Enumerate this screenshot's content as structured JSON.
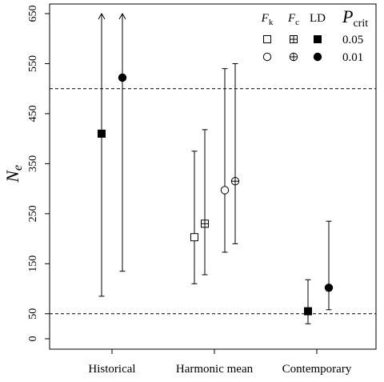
{
  "chart_data": {
    "type": "scatter",
    "subtype": "point-with-interval",
    "title": "",
    "xlabel": "",
    "ylabel": "N",
    "ylabel_subscript": "e",
    "categories": [
      "Historical",
      "Harmonic mean",
      "Contemporary"
    ],
    "ylim": [
      0,
      650
    ],
    "yticks": [
      0,
      50,
      150,
      250,
      350,
      450,
      550,
      650
    ],
    "reference_lines": [
      {
        "y": 50,
        "style": "dashed"
      },
      {
        "y": 500,
        "style": "dashed"
      }
    ],
    "legend": {
      "placement": "top-right",
      "method_headers": [
        {
          "main": "F",
          "sub": "k"
        },
        {
          "main": "F",
          "sub": "c"
        },
        {
          "main": "LD",
          "sub": ""
        }
      ],
      "pcrit_header": {
        "main": "P",
        "sub": "crit"
      },
      "rows": [
        {
          "pcrit": "0.05",
          "markers": [
            "open-square",
            "crossed-square",
            "filled-square"
          ]
        },
        {
          "pcrit": "0.01",
          "markers": [
            "open-circle",
            "crossed-circle",
            "filled-circle"
          ]
        }
      ]
    },
    "points": [
      {
        "category": "Historical",
        "method": "LD",
        "pcrit": "0.05",
        "marker": "filled-square",
        "y": 410,
        "lower": 85,
        "upper": 650,
        "upper_unbounded": true
      },
      {
        "category": "Historical",
        "method": "LD",
        "pcrit": "0.01",
        "marker": "filled-circle",
        "y": 522,
        "lower": 135,
        "upper": 650,
        "upper_unbounded": true
      },
      {
        "category": "Harmonic mean",
        "method": "F_k",
        "pcrit": "0.05",
        "marker": "open-square",
        "y": 203,
        "lower": 110,
        "upper": 375
      },
      {
        "category": "Harmonic mean",
        "method": "F_c",
        "pcrit": "0.05",
        "marker": "crossed-square",
        "y": 230,
        "lower": 128,
        "upper": 418
      },
      {
        "category": "Harmonic mean",
        "method": "F_k",
        "pcrit": "0.01",
        "marker": "open-circle",
        "y": 297,
        "lower": 173,
        "upper": 540
      },
      {
        "category": "Harmonic mean",
        "method": "F_c",
        "pcrit": "0.01",
        "marker": "crossed-circle",
        "y": 315,
        "lower": 190,
        "upper": 550
      },
      {
        "category": "Contemporary",
        "method": "LD",
        "pcrit": "0.05",
        "marker": "filled-square",
        "y": 55,
        "lower": 30,
        "upper": 118
      },
      {
        "category": "Contemporary",
        "method": "LD",
        "pcrit": "0.01",
        "marker": "filled-circle",
        "y": 102,
        "lower": 58,
        "upper": 235
      }
    ],
    "grid": false,
    "colors": {
      "ink": "#000000",
      "background": "#ffffff"
    }
  }
}
